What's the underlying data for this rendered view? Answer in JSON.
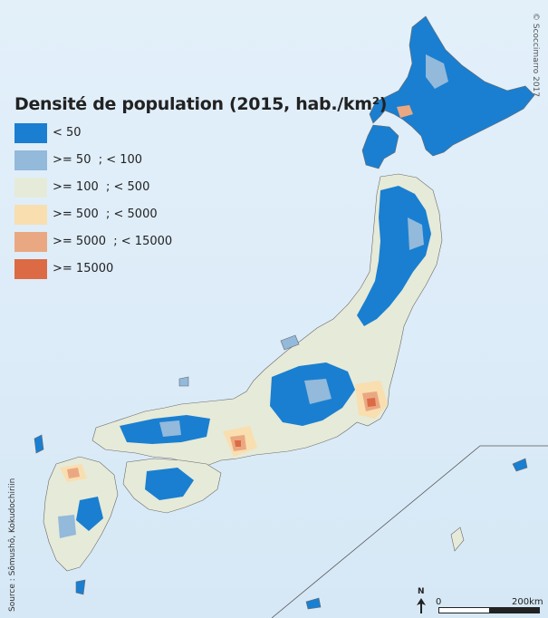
{
  "map": {
    "title": "Densité de population (2015, hab./km²)",
    "legend": [
      {
        "label": "< 50",
        "color": "#1a7fd0"
      },
      {
        "label": ">= 50  ; < 100",
        "color": "#93b9db"
      },
      {
        "label": ">= 100  ; < 500",
        "color": "#e6ead8"
      },
      {
        "label": ">= 500  ; < 5000",
        "color": "#f9deb0"
      },
      {
        "label": ">= 5000  ; < 15000",
        "color": "#eaa882"
      },
      {
        "label": ">= 15000",
        "color": "#dc6a45"
      }
    ],
    "credit": "© Scoccimarro 2017",
    "source": "Source : Sômushô, Kokudochiriin",
    "scale": {
      "start": "0",
      "end": "200km"
    },
    "north": "N",
    "colors": {
      "sea": "#dbeaf7",
      "border": "#6a6a6a"
    }
  }
}
